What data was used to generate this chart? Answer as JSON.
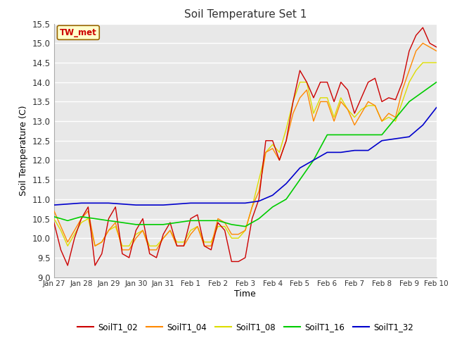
{
  "title": "Soil Temperature Set 1",
  "xlabel": "Time",
  "ylabel": "Soil Temperature (C)",
  "ylim": [
    9.0,
    15.5
  ],
  "yticks": [
    9.0,
    9.5,
    10.0,
    10.5,
    11.0,
    11.5,
    12.0,
    12.5,
    13.0,
    13.5,
    14.0,
    14.5,
    15.0,
    15.5
  ],
  "fig_bg": "#ffffff",
  "plot_bg": "#e8e8e8",
  "grid_color": "#ffffff",
  "colors": {
    "SoilT1_02": "#cc0000",
    "SoilT1_04": "#ff8800",
    "SoilT1_08": "#dddd00",
    "SoilT1_16": "#00cc00",
    "SoilT1_32": "#0000cc"
  },
  "x_tick_labels": [
    "Jan 27",
    "Jan 28",
    "Jan 29",
    "Jan 30",
    "Jan 31",
    "Feb 1",
    "Feb 2",
    "Feb 3",
    "Feb 4",
    "Feb 5",
    "Feb 6",
    "Feb 7",
    "Feb 8",
    "Feb 9",
    "Feb 10"
  ],
  "x_tick_positions": [
    0,
    24,
    48,
    72,
    96,
    120,
    144,
    168,
    192,
    216,
    240,
    264,
    288,
    312,
    336
  ],
  "tw_met_label": "TW_met",
  "tw_met_facecolor": "#ffffcc",
  "tw_met_edgecolor": "#996600",
  "tw_met_textcolor": "#cc0000",
  "series_02_t": [
    0,
    6,
    12,
    18,
    24,
    30,
    36,
    42,
    48,
    54,
    60,
    66,
    72,
    78,
    84,
    90,
    96,
    102,
    108,
    114,
    120,
    126,
    132,
    138,
    144,
    150,
    156,
    162,
    168,
    174,
    180,
    186,
    192,
    198,
    204,
    210,
    216,
    222,
    228,
    234,
    240,
    246,
    252,
    258,
    264,
    270,
    276,
    282,
    288,
    294,
    300,
    306,
    312,
    318,
    324,
    330,
    336
  ],
  "series_02_v": [
    10.4,
    9.7,
    9.3,
    10.0,
    10.5,
    10.8,
    9.3,
    9.6,
    10.5,
    10.8,
    9.6,
    9.5,
    10.2,
    10.5,
    9.6,
    9.5,
    10.1,
    10.4,
    9.8,
    9.8,
    10.5,
    10.6,
    9.8,
    9.7,
    10.4,
    10.2,
    9.4,
    9.4,
    9.5,
    10.5,
    11.0,
    12.5,
    12.5,
    12.0,
    12.5,
    13.5,
    14.3,
    14.0,
    13.6,
    14.0,
    14.0,
    13.5,
    14.0,
    13.8,
    13.2,
    13.6,
    14.0,
    14.1,
    13.5,
    13.6,
    13.55,
    14.0,
    14.8,
    15.2,
    15.4,
    15.0,
    14.9
  ],
  "series_04_t": [
    0,
    6,
    12,
    18,
    24,
    30,
    36,
    42,
    48,
    54,
    60,
    66,
    72,
    78,
    84,
    90,
    96,
    102,
    108,
    114,
    120,
    126,
    132,
    138,
    144,
    150,
    156,
    162,
    168,
    174,
    180,
    186,
    192,
    198,
    204,
    210,
    216,
    222,
    228,
    234,
    240,
    246,
    252,
    258,
    264,
    270,
    276,
    282,
    288,
    294,
    300,
    306,
    312,
    318,
    324,
    330,
    336
  ],
  "series_04_v": [
    10.7,
    10.3,
    9.9,
    10.2,
    10.5,
    10.7,
    9.8,
    9.9,
    10.2,
    10.4,
    9.7,
    9.7,
    10.0,
    10.2,
    9.7,
    9.7,
    10.0,
    10.2,
    9.8,
    9.8,
    10.1,
    10.3,
    9.8,
    9.8,
    10.5,
    10.4,
    10.1,
    10.1,
    10.2,
    10.8,
    11.2,
    12.2,
    12.3,
    12.0,
    12.5,
    13.2,
    13.6,
    13.8,
    13.0,
    13.5,
    13.5,
    13.0,
    13.5,
    13.3,
    12.9,
    13.2,
    13.5,
    13.4,
    13.0,
    13.2,
    13.1,
    13.8,
    14.3,
    14.8,
    15.0,
    14.9,
    14.8
  ],
  "series_08_t": [
    0,
    6,
    12,
    18,
    24,
    30,
    36,
    42,
    48,
    54,
    60,
    66,
    72,
    78,
    84,
    90,
    96,
    102,
    108,
    114,
    120,
    126,
    132,
    138,
    144,
    150,
    156,
    162,
    168,
    174,
    180,
    186,
    192,
    198,
    204,
    210,
    216,
    222,
    228,
    234,
    240,
    246,
    252,
    258,
    264,
    270,
    276,
    282,
    288,
    294,
    300,
    306,
    312,
    318,
    324,
    330,
    336
  ],
  "series_08_v": [
    10.5,
    10.2,
    9.8,
    10.1,
    10.4,
    10.5,
    9.8,
    9.9,
    10.2,
    10.3,
    9.8,
    9.8,
    10.1,
    10.2,
    9.8,
    9.8,
    10.0,
    10.2,
    9.9,
    9.9,
    10.2,
    10.3,
    9.9,
    9.9,
    10.3,
    10.3,
    10.0,
    10.0,
    10.2,
    10.8,
    11.5,
    12.2,
    12.4,
    12.2,
    12.8,
    13.5,
    14.0,
    14.0,
    13.2,
    13.6,
    13.6,
    13.1,
    13.6,
    13.3,
    13.1,
    13.3,
    13.4,
    13.4,
    13.0,
    13.1,
    13.0,
    13.5,
    14.0,
    14.3,
    14.5,
    14.5,
    14.5
  ],
  "series_16_t": [
    0,
    12,
    24,
    48,
    72,
    96,
    120,
    144,
    156,
    168,
    180,
    192,
    204,
    216,
    228,
    240,
    252,
    264,
    276,
    288,
    312,
    336
  ],
  "series_16_v": [
    10.55,
    10.45,
    10.55,
    10.45,
    10.35,
    10.35,
    10.45,
    10.45,
    10.35,
    10.3,
    10.5,
    10.8,
    11.0,
    11.5,
    12.0,
    12.65,
    12.65,
    12.65,
    12.65,
    12.65,
    13.5,
    14.0
  ],
  "series_32_t": [
    0,
    24,
    48,
    72,
    96,
    120,
    144,
    168,
    180,
    192,
    204,
    216,
    228,
    240,
    252,
    264,
    276,
    288,
    300,
    312,
    324,
    336
  ],
  "series_32_v": [
    10.85,
    10.9,
    10.9,
    10.85,
    10.85,
    10.9,
    10.9,
    10.9,
    10.95,
    11.1,
    11.4,
    11.8,
    12.0,
    12.2,
    12.2,
    12.25,
    12.25,
    12.5,
    12.55,
    12.6,
    12.9,
    13.35
  ]
}
